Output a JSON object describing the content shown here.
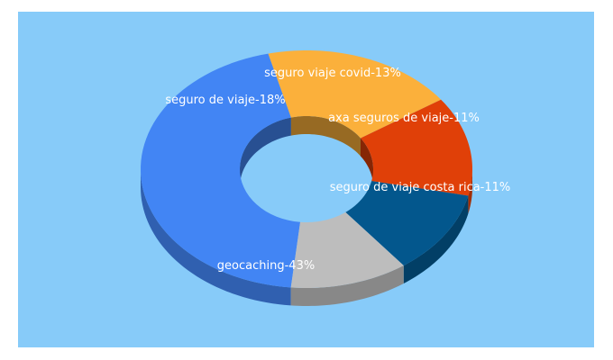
{
  "chart_data": {
    "type": "pie",
    "style": "3d-donut",
    "title": "",
    "legend": "none",
    "slices": [
      {
        "label": "geocaching-43%",
        "value": 43,
        "color": "#4285F4"
      },
      {
        "label": "seguro de viaje-18%",
        "value": 18,
        "color": "#FBB03B"
      },
      {
        "label": "seguro viaje covid-13%",
        "value": 13,
        "color": "#E04008"
      },
      {
        "label": "axa seguros de viaje-11%",
        "value": 11,
        "color": "#03578D"
      },
      {
        "label": "seguro de viaje costa rica-11%",
        "value": 11,
        "color": "#BDBDBD"
      }
    ]
  },
  "colors": {
    "background": "#87CBF9"
  }
}
